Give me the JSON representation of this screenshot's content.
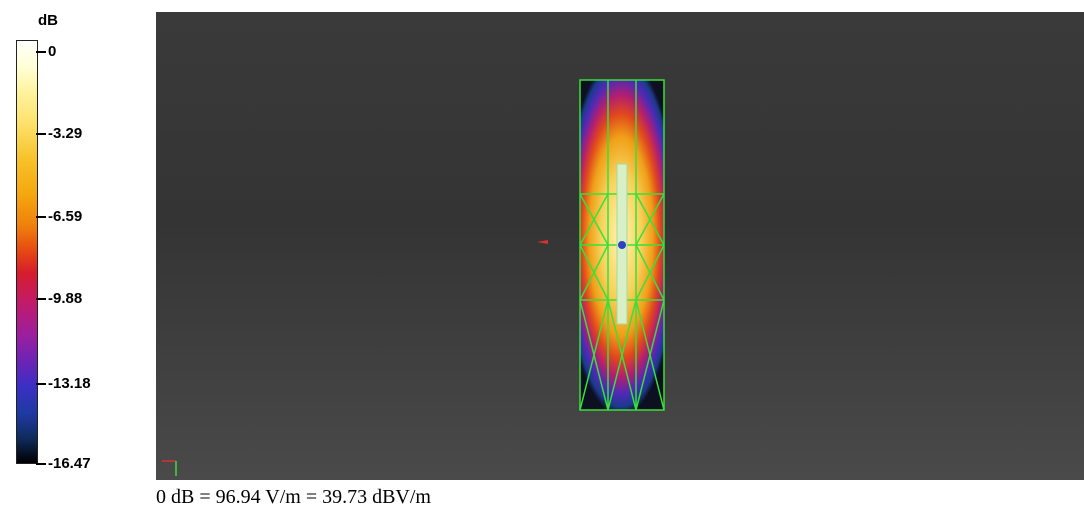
{
  "colorbar": {
    "unit": "dB",
    "ticks": [
      "0",
      "-3.29",
      "-6.59",
      "-9.88",
      "-13.18",
      "-16.47"
    ]
  },
  "caption": "0 dB = 96.94 V/m = 39.73 dBV/m",
  "colors": {
    "background_top": "#3a3a3a",
    "background_bottom": "#4a4a4a",
    "mesh": "#39e03a",
    "dipole": "#d8f0c8",
    "marker": "#d93030",
    "feed_point": "#3040c0"
  }
}
